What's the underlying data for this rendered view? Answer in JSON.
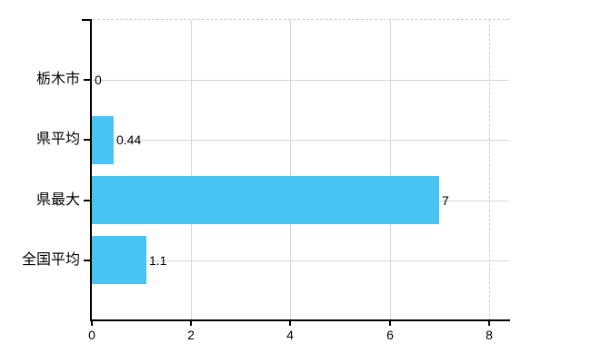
{
  "chart_data": {
    "type": "bar",
    "orientation": "horizontal",
    "title": "",
    "categories": [
      "栃木市",
      "県平均",
      "県最大",
      "全国平均"
    ],
    "values": [
      0,
      0.44,
      7,
      1.1
    ],
    "value_labels": [
      "0",
      "0.44",
      "7",
      "1.1"
    ],
    "x_tick_labels": [
      "0",
      "2",
      "4",
      "6",
      "8"
    ],
    "x_tick_values": [
      0,
      2,
      4,
      6,
      8
    ],
    "xlim": [
      0,
      8.4
    ],
    "grid": "on",
    "legend": "none",
    "colors": {
      "bar": "#47C4F2",
      "grid": "#D6D6D6",
      "dashed_line": "#CBCBCB",
      "axis": "#000000",
      "text": "#000000",
      "background": "#FFFFFF"
    }
  }
}
